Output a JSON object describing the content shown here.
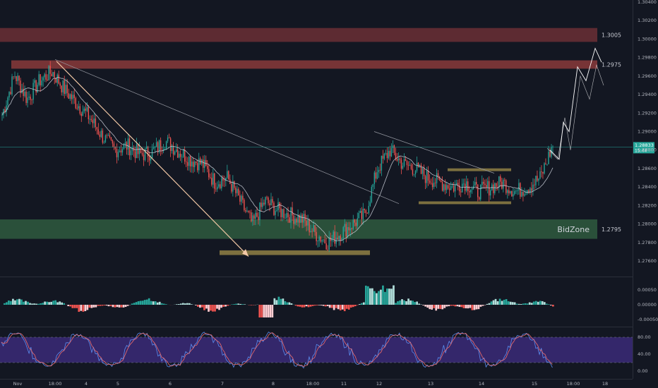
{
  "chart_data": [
    {
      "type": "candlestick",
      "panel": "price",
      "ylim": [
        1.2745,
        1.3045
      ],
      "y_ticks": [
        "1.30400",
        "1.30200",
        "1.30000",
        "1.29800",
        "1.29600",
        "1.29400",
        "1.29200",
        "1.29000",
        "1.28800",
        "1.28600",
        "1.28400",
        "1.28200",
        "1.28000",
        "1.27800",
        "1.27600"
      ],
      "x_ticks": [
        "Nov",
        "18:00",
        "4",
        "5",
        "6",
        "7",
        "8",
        "18:00",
        "11",
        "12",
        "13",
        "14",
        "15",
        "18:00",
        "18"
      ],
      "close_anchors": [
        1.2918,
        1.2962,
        1.2935,
        1.2955,
        1.2965,
        1.2945,
        1.293,
        1.2915,
        1.2895,
        1.288,
        1.2885,
        1.2875,
        1.2878,
        1.289,
        1.288,
        1.287,
        1.2865,
        1.2845,
        1.285,
        1.2825,
        1.28,
        1.2825,
        1.2815,
        1.281,
        1.2805,
        1.279,
        1.278,
        1.279,
        1.28,
        1.281,
        1.286,
        1.288,
        1.2865,
        1.286,
        1.285,
        1.2845,
        1.284,
        1.2845,
        1.2835,
        1.284,
        1.2845,
        1.2835,
        1.284,
        1.285,
        1.2885
      ],
      "last_price": "1.28833",
      "countdown": "15:44",
      "zones": [
        {
          "label": "1.3005",
          "price_top": 1.3012,
          "price_bottom": 1.2997,
          "color": "#6b2f35"
        },
        {
          "label": "1.2975",
          "price_top": 1.2977,
          "price_bottom": 1.2968,
          "color": "#8a3a3a"
        },
        {
          "label": "1.2795",
          "zone_text": "BidZone",
          "price_top": 1.2805,
          "price_bottom": 1.2784,
          "color": "#2f5a3e"
        }
      ],
      "boxes": [
        {
          "price_top": 1.27715,
          "price_bottom": 1.27665,
          "color": "#8a7a42"
        },
        {
          "price_top": 1.28602,
          "price_bottom": 1.28572,
          "color": "#8a7a42"
        },
        {
          "price_top": 1.28245,
          "price_bottom": 1.28215,
          "color": "#8a7a42"
        }
      ],
      "projection_path": [
        1.288,
        1.287,
        1.291,
        1.29,
        1.297,
        1.2955,
        1.299,
        1.2975
      ],
      "colors": {
        "up": "#26a69a",
        "down": "#ef5350",
        "ma": "#c8ccd6",
        "arrow": "#f3c9a6",
        "price_line": "#26a69a"
      }
    },
    {
      "type": "histogram",
      "panel": "oscillator",
      "y_ticks": [
        "0.00050",
        "0.00000",
        "-0.00050"
      ],
      "colors": {
        "up": "#26a69a",
        "up_light": "#b2dfdb",
        "down": "#ef5350",
        "down_light": "#ffcdd2"
      }
    },
    {
      "type": "line",
      "panel": "stochastic",
      "y_ticks": [
        "80.00",
        "40.00",
        "0.00"
      ],
      "band": [
        20,
        80
      ],
      "series": [
        {
          "color": "#5b8def"
        },
        {
          "color": "#ef6c6c"
        }
      ],
      "band_color": "#3b2a78"
    }
  ]
}
